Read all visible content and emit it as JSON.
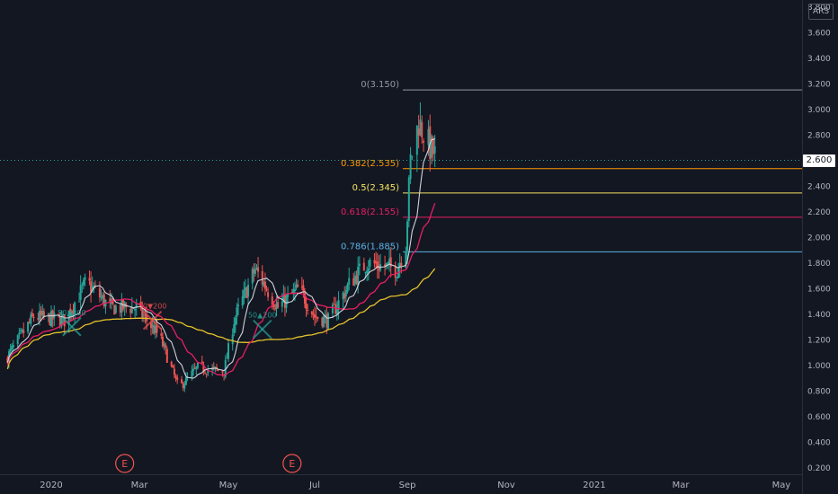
{
  "currency": "ARS",
  "last_price_label": "2.600",
  "chart_data": {
    "type": "candlestick",
    "x_tick_labels": [
      "2020",
      "Mar",
      "May",
      "Jul",
      "Sep",
      "Nov",
      "2021",
      "Mar",
      "May"
    ],
    "y_tick_labels": [
      "0.200",
      "0.400",
      "0.600",
      "0.800",
      "1.000",
      "1.200",
      "1.400",
      "1.600",
      "1.800",
      "2.000",
      "2.200",
      "2.400",
      "2.600",
      "2.800",
      "3.000",
      "3.200",
      "3.400",
      "3.600",
      "3.800"
    ],
    "ylim": [
      0.15,
      3.85
    ],
    "grid": false,
    "last_price": 2.6,
    "colors": {
      "up": "#26a69a",
      "down": "#ef5350",
      "background": "#131722",
      "sma_fast": "#d1d4dc",
      "sma_mid": "#e91e63",
      "sma_slow": "#e6c229"
    },
    "fibonacci_levels": [
      {
        "label": "0(3.150)",
        "value": 3.15,
        "color": "#9598a1"
      },
      {
        "label": "0.382(2.535)",
        "value": 2.535,
        "color": "#ff9800"
      },
      {
        "label": "0.5(2.345)",
        "value": 2.345,
        "color": "#f7e463"
      },
      {
        "label": "0.618(2.155)",
        "value": 2.155,
        "color": "#e91e63"
      },
      {
        "label": "0.786(1.885)",
        "value": 1.885,
        "color": "#5ab3e6"
      }
    ],
    "cross_annotations": [
      {
        "label": "50▲200",
        "color": "#26a69a",
        "date": "2020-01-15",
        "value": 1.3
      },
      {
        "label": "50▼200",
        "color": "#ef5350",
        "date": "2020-03-10",
        "value": 1.35
      },
      {
        "label": "50▲200",
        "color": "#26a69a",
        "date": "2020-05-25",
        "value": 1.28
      }
    ],
    "event_markers": [
      {
        "label": "E",
        "date": "2020-02-20"
      },
      {
        "label": "E",
        "date": "2020-06-15"
      }
    ],
    "ohlc_anchors": [
      {
        "date": "2019-12-01",
        "close": 1.05
      },
      {
        "date": "2019-12-20",
        "close": 1.38
      },
      {
        "date": "2020-01-10",
        "close": 1.35
      },
      {
        "date": "2020-01-25",
        "close": 1.65
      },
      {
        "date": "2020-02-10",
        "close": 1.45
      },
      {
        "date": "2020-02-28",
        "close": 1.45
      },
      {
        "date": "2020-03-15",
        "close": 1.22
      },
      {
        "date": "2020-03-28",
        "close": 0.82
      },
      {
        "date": "2020-04-10",
        "close": 0.98
      },
      {
        "date": "2020-04-28",
        "close": 0.95
      },
      {
        "date": "2020-05-05",
        "close": 1.35
      },
      {
        "date": "2020-05-20",
        "close": 1.75
      },
      {
        "date": "2020-06-05",
        "close": 1.45
      },
      {
        "date": "2020-06-20",
        "close": 1.6
      },
      {
        "date": "2020-07-01",
        "close": 1.38
      },
      {
        "date": "2020-07-10",
        "close": 1.35
      },
      {
        "date": "2020-07-25",
        "close": 1.65
      },
      {
        "date": "2020-08-05",
        "close": 1.8
      },
      {
        "date": "2020-08-25",
        "close": 1.75
      },
      {
        "date": "2020-08-31",
        "close": 1.95
      },
      {
        "date": "2020-09-03",
        "close": 2.6
      },
      {
        "date": "2020-09-08",
        "close": 2.9
      },
      {
        "date": "2020-09-15",
        "close": 2.7
      },
      {
        "date": "2020-09-20",
        "close": 2.6
      }
    ]
  }
}
